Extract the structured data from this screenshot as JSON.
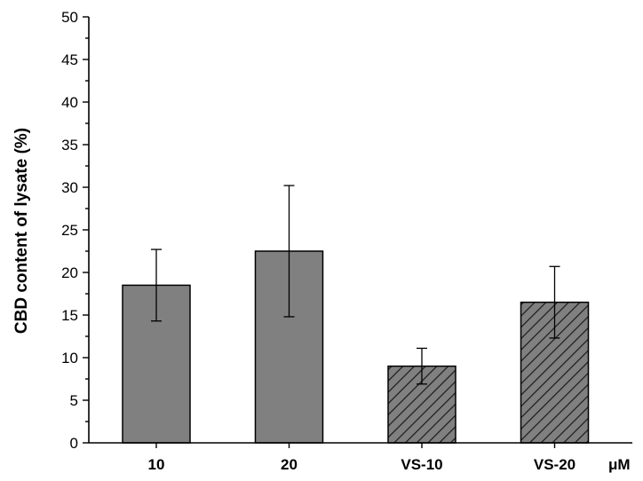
{
  "chart_data": {
    "type": "bar",
    "title": "",
    "xlabel": "",
    "ylabel": "CBD content of lysate (%)",
    "x_unit": "μM",
    "categories": [
      "10",
      "20",
      "VS-10",
      "VS-20"
    ],
    "values": [
      18.5,
      22.5,
      9.0,
      16.5
    ],
    "errors": [
      4.2,
      7.7,
      2.1,
      4.2
    ],
    "bar_styles": [
      "solid",
      "solid",
      "hatched",
      "hatched"
    ],
    "bar_color": "#808080",
    "ylim": [
      0,
      50
    ],
    "yticks": [
      0,
      5,
      10,
      15,
      20,
      25,
      30,
      35,
      40,
      45,
      50
    ],
    "grid": false,
    "legend": "none"
  }
}
